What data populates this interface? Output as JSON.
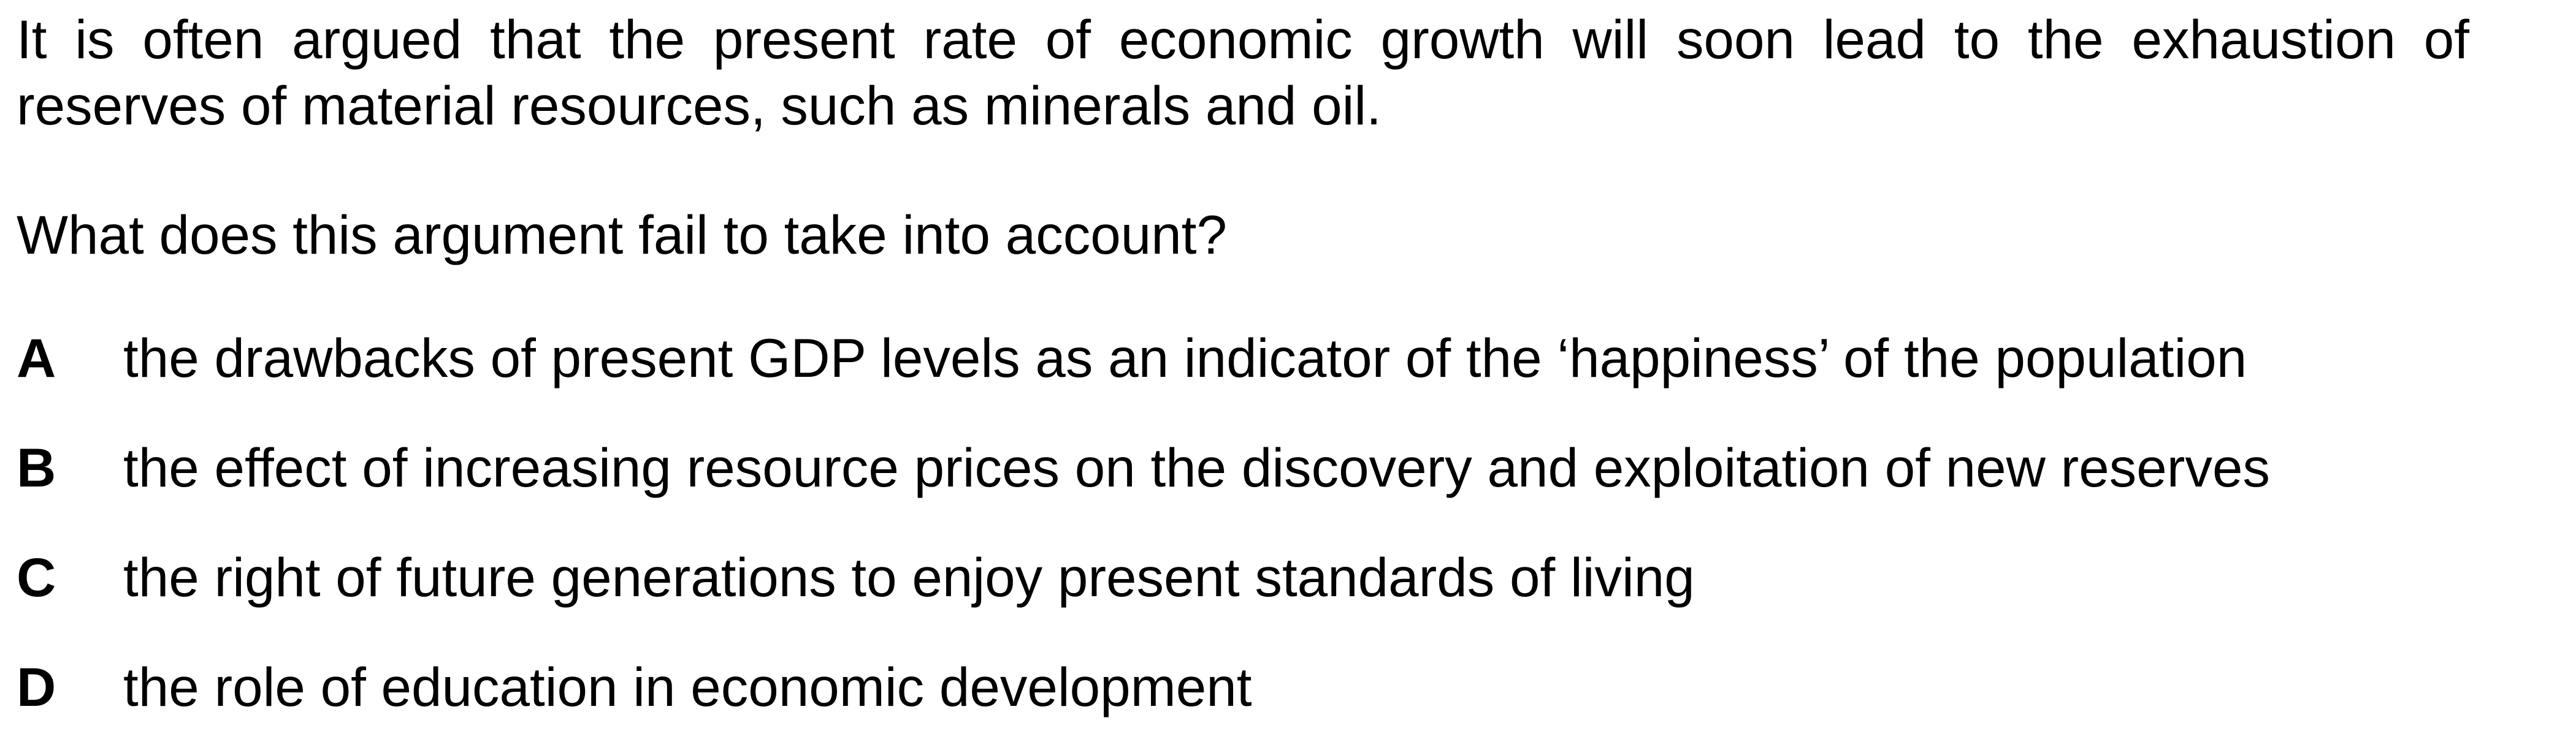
{
  "stem": "It is often argued that the present rate of economic growth will soon lead to the exhaustion of reserves of material resources, such as minerals and oil.",
  "question": "What does this argument fail to take into account?",
  "options": [
    {
      "letter": "A",
      "text": "the drawbacks of present GDP levels as an indicator of the ‘happiness’ of the population"
    },
    {
      "letter": "B",
      "text": "the effect of increasing resource prices on the discovery and exploitation of new reserves"
    },
    {
      "letter": "C",
      "text": "the right of future generations to enjoy present standards of living"
    },
    {
      "letter": "D",
      "text": "the role of education in economic development"
    }
  ]
}
